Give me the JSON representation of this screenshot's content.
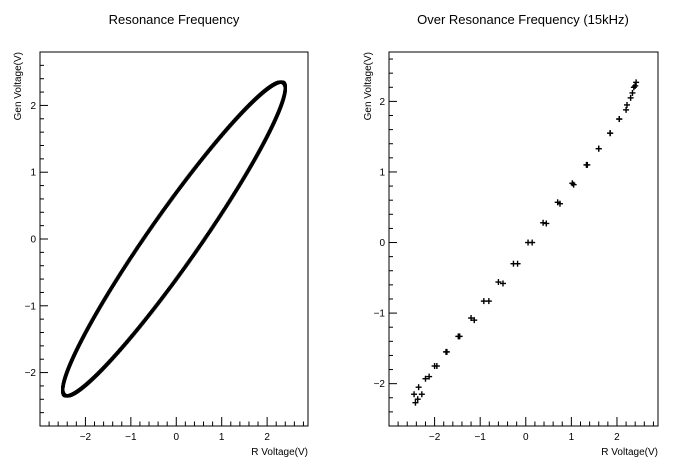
{
  "chart_data": [
    {
      "type": "scatter",
      "style": "dense-loop",
      "title": "Resonance Frequency",
      "xlabel": "R Voltage(V)",
      "ylabel": "Gen Voltage(V)",
      "xlim": [
        -3.0,
        2.9
      ],
      "ylim": [
        -2.8,
        2.8
      ],
      "xticks": [
        -2,
        -1,
        0,
        1,
        2
      ],
      "yticks": [
        -2,
        -1,
        0,
        1,
        2
      ],
      "grid": false,
      "legend": "none",
      "marker_color": "#000000",
      "loop": {
        "x_amplitude": 2.45,
        "y_amplitude": 2.35,
        "x_center": -0.05,
        "y_center": 0.0,
        "phase_deg": 16
      },
      "series": [
        {
          "points": [
            [
              2.36,
              2.35
            ],
            [
              2.2,
              2.13
            ],
            [
              1.78,
              1.66
            ],
            [
              1.14,
              0.98
            ],
            [
              0.36,
              0.16
            ],
            [
              -0.46,
              -0.68
            ],
            [
              -1.23,
              -1.43
            ],
            [
              -1.86,
              -2.0
            ],
            [
              -2.29,
              -2.32
            ],
            [
              -2.46,
              -2.32
            ],
            [
              -2.3,
              -2.0
            ],
            [
              -1.87,
              -1.43
            ],
            [
              -1.23,
              -0.68
            ],
            [
              -0.46,
              0.16
            ],
            [
              0.36,
              0.98
            ],
            [
              1.14,
              1.66
            ],
            [
              1.78,
              2.13
            ],
            [
              2.2,
              2.34
            ]
          ]
        }
      ]
    },
    {
      "type": "scatter",
      "style": "plus-markers",
      "title": "Over Resonance Frequency (15kHz)",
      "xlabel": "R Voltage(V)",
      "ylabel": "Gen Voltage(V)",
      "xlim": [
        -3.0,
        2.9
      ],
      "ylim": [
        -2.6,
        2.7
      ],
      "xticks": [
        -2,
        -1,
        0,
        1,
        2
      ],
      "yticks": [
        -2,
        -1,
        0,
        1,
        2
      ],
      "grid": false,
      "legend": "none",
      "marker_color": "#000000",
      "series": [
        {
          "points": [
            [
              2.42,
              2.27
            ],
            [
              2.37,
              2.2
            ],
            [
              2.3,
              2.05
            ],
            [
              2.2,
              1.88
            ],
            [
              2.05,
              1.75
            ],
            [
              1.85,
              1.55
            ],
            [
              1.6,
              1.33
            ],
            [
              1.35,
              1.1
            ],
            [
              1.05,
              0.82
            ],
            [
              0.75,
              0.55
            ],
            [
              0.45,
              0.27
            ],
            [
              0.14,
              0.0
            ],
            [
              -0.18,
              -0.3
            ],
            [
              -0.5,
              -0.58
            ],
            [
              -0.81,
              -0.83
            ],
            [
              -1.13,
              -1.1
            ],
            [
              -1.45,
              -1.33
            ],
            [
              -1.75,
              -1.55
            ],
            [
              -2.0,
              -1.75
            ],
            [
              -2.2,
              -1.93
            ],
            [
              -2.35,
              -2.05
            ],
            [
              -2.45,
              -2.15
            ],
            [
              -2.42,
              -2.27
            ],
            [
              -2.37,
              -2.22
            ],
            [
              -2.28,
              -2.15
            ],
            [
              -2.12,
              -1.9
            ],
            [
              -1.95,
              -1.75
            ],
            [
              -1.73,
              -1.55
            ],
            [
              -1.48,
              -1.33
            ],
            [
              -1.2,
              -1.07
            ],
            [
              -0.92,
              -0.83
            ],
            [
              -0.6,
              -0.56
            ],
            [
              -0.27,
              -0.3
            ],
            [
              0.05,
              0.0
            ],
            [
              0.38,
              0.28
            ],
            [
              0.7,
              0.57
            ],
            [
              1.02,
              0.84
            ],
            [
              1.33,
              1.1
            ],
            [
              1.6,
              1.33
            ],
            [
              1.85,
              1.55
            ],
            [
              2.05,
              1.75
            ],
            [
              2.22,
              1.95
            ],
            [
              2.34,
              2.12
            ],
            [
              2.4,
              2.22
            ]
          ]
        }
      ]
    }
  ]
}
